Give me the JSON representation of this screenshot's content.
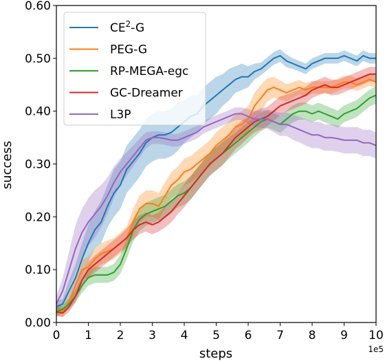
{
  "chart_data": {
    "type": "line",
    "xlabel": "steps",
    "ylabel": "success",
    "x_offset_label": "1e5",
    "xlim": [
      0,
      10
    ],
    "ylim": [
      0,
      0.6
    ],
    "xticks": [
      0,
      1,
      2,
      3,
      4,
      5,
      6,
      7,
      8,
      9,
      10
    ],
    "xtick_labels": [
      "0",
      "1",
      "2",
      "3",
      "4",
      "5",
      "6",
      "7",
      "8",
      "9",
      "10"
    ],
    "yticks": [
      0,
      0.1,
      0.2,
      0.3,
      0.4,
      0.5,
      0.6
    ],
    "ytick_labels": [
      "0.00",
      "0.10",
      "0.20",
      "0.30",
      "0.40",
      "0.50",
      "0.60"
    ],
    "grid": false,
    "legend_position": "upper-left",
    "x": [
      0,
      0.2,
      0.4,
      0.6,
      0.8,
      1.0,
      1.2,
      1.4,
      1.6,
      1.8,
      2.0,
      2.2,
      2.4,
      2.6,
      2.8,
      3.0,
      3.2,
      3.4,
      3.6,
      3.8,
      4.0,
      4.2,
      4.4,
      4.6,
      4.8,
      5.0,
      5.2,
      5.4,
      5.6,
      5.8,
      6.0,
      6.2,
      6.4,
      6.6,
      6.8,
      7.0,
      7.2,
      7.4,
      7.6,
      7.8,
      8.0,
      8.2,
      8.4,
      8.6,
      8.8,
      9.0,
      9.2,
      9.4,
      9.6,
      9.8,
      10.0
    ],
    "series": [
      {
        "name_prefix": "CE",
        "name_sup": "2",
        "name_suffix": "-G",
        "color": "#1f77b4",
        "values": [
          0.03,
          0.035,
          0.06,
          0.085,
          0.12,
          0.15,
          0.175,
          0.19,
          0.22,
          0.245,
          0.26,
          0.29,
          0.305,
          0.32,
          0.34,
          0.35,
          0.355,
          0.355,
          0.36,
          0.37,
          0.38,
          0.39,
          0.395,
          0.41,
          0.42,
          0.43,
          0.44,
          0.45,
          0.46,
          0.465,
          0.465,
          0.475,
          0.48,
          0.49,
          0.5,
          0.505,
          0.495,
          0.49,
          0.485,
          0.48,
          0.49,
          0.495,
          0.5,
          0.5,
          0.5,
          0.505,
          0.5,
          0.495,
          0.505,
          0.5,
          0.5
        ],
        "band": [
          0.01,
          0.01,
          0.02,
          0.025,
          0.03,
          0.035,
          0.035,
          0.04,
          0.04,
          0.045,
          0.045,
          0.045,
          0.045,
          0.045,
          0.045,
          0.045,
          0.045,
          0.045,
          0.045,
          0.045,
          0.04,
          0.04,
          0.035,
          0.035,
          0.035,
          0.035,
          0.03,
          0.03,
          0.025,
          0.025,
          0.02,
          0.015,
          0.012,
          0.012,
          0.012,
          0.012,
          0.012,
          0.01,
          0.01,
          0.01,
          0.01,
          0.01,
          0.01,
          0.01,
          0.01,
          0.01,
          0.01,
          0.01,
          0.01,
          0.01,
          0.01
        ]
      },
      {
        "name": "PEG-G",
        "color": "#ff7f0e",
        "values": [
          0.025,
          0.02,
          0.04,
          0.07,
          0.1,
          0.105,
          0.12,
          0.13,
          0.135,
          0.14,
          0.15,
          0.16,
          0.19,
          0.215,
          0.225,
          0.225,
          0.22,
          0.24,
          0.26,
          0.27,
          0.285,
          0.29,
          0.3,
          0.31,
          0.32,
          0.335,
          0.345,
          0.355,
          0.37,
          0.375,
          0.385,
          0.41,
          0.425,
          0.44,
          0.445,
          0.44,
          0.435,
          0.44,
          0.445,
          0.44,
          0.445,
          0.445,
          0.445,
          0.445,
          0.45,
          0.455,
          0.455,
          0.45,
          0.455,
          0.46,
          0.455
        ],
        "band": [
          0.01,
          0.01,
          0.012,
          0.015,
          0.018,
          0.02,
          0.02,
          0.02,
          0.02,
          0.02,
          0.02,
          0.022,
          0.025,
          0.025,
          0.025,
          0.025,
          0.025,
          0.025,
          0.025,
          0.025,
          0.025,
          0.025,
          0.025,
          0.025,
          0.025,
          0.025,
          0.025,
          0.025,
          0.025,
          0.025,
          0.025,
          0.025,
          0.025,
          0.022,
          0.02,
          0.018,
          0.016,
          0.015,
          0.014,
          0.013,
          0.012,
          0.012,
          0.012,
          0.012,
          0.012,
          0.012,
          0.012,
          0.012,
          0.012,
          0.012,
          0.012
        ]
      },
      {
        "name": "RP-MEGA-egc",
        "color": "#2ca02c",
        "values": [
          0.02,
          0.025,
          0.035,
          0.05,
          0.07,
          0.085,
          0.09,
          0.09,
          0.09,
          0.095,
          0.11,
          0.14,
          0.175,
          0.195,
          0.205,
          0.21,
          0.215,
          0.22,
          0.23,
          0.24,
          0.245,
          0.255,
          0.27,
          0.285,
          0.3,
          0.31,
          0.32,
          0.33,
          0.34,
          0.35,
          0.36,
          0.37,
          0.38,
          0.385,
          0.38,
          0.375,
          0.385,
          0.395,
          0.4,
          0.4,
          0.395,
          0.4,
          0.395,
          0.39,
          0.385,
          0.395,
          0.4,
          0.405,
          0.415,
          0.425,
          0.43
        ],
        "band": [
          0.008,
          0.008,
          0.01,
          0.012,
          0.014,
          0.015,
          0.015,
          0.015,
          0.015,
          0.016,
          0.018,
          0.02,
          0.022,
          0.022,
          0.022,
          0.022,
          0.022,
          0.022,
          0.022,
          0.022,
          0.022,
          0.022,
          0.022,
          0.022,
          0.022,
          0.022,
          0.022,
          0.02,
          0.02,
          0.02,
          0.02,
          0.018,
          0.018,
          0.016,
          0.016,
          0.016,
          0.016,
          0.016,
          0.016,
          0.016,
          0.016,
          0.016,
          0.016,
          0.016,
          0.016,
          0.016,
          0.016,
          0.016,
          0.016,
          0.016,
          0.016
        ]
      },
      {
        "name": "GC-Dreamer",
        "color": "#d62728",
        "values": [
          0.02,
          0.018,
          0.03,
          0.05,
          0.08,
          0.1,
          0.11,
          0.12,
          0.13,
          0.14,
          0.15,
          0.16,
          0.175,
          0.185,
          0.19,
          0.185,
          0.19,
          0.2,
          0.21,
          0.225,
          0.24,
          0.255,
          0.27,
          0.285,
          0.3,
          0.31,
          0.32,
          0.335,
          0.35,
          0.36,
          0.37,
          0.38,
          0.385,
          0.39,
          0.4,
          0.41,
          0.415,
          0.42,
          0.425,
          0.43,
          0.44,
          0.445,
          0.45,
          0.445,
          0.445,
          0.45,
          0.455,
          0.46,
          0.465,
          0.47,
          0.47
        ],
        "band": [
          0.008,
          0.008,
          0.01,
          0.012,
          0.014,
          0.015,
          0.016,
          0.016,
          0.016,
          0.016,
          0.016,
          0.018,
          0.018,
          0.018,
          0.018,
          0.018,
          0.018,
          0.02,
          0.02,
          0.02,
          0.022,
          0.022,
          0.022,
          0.022,
          0.022,
          0.022,
          0.022,
          0.022,
          0.022,
          0.022,
          0.02,
          0.02,
          0.02,
          0.018,
          0.018,
          0.018,
          0.016,
          0.016,
          0.016,
          0.016,
          0.015,
          0.015,
          0.015,
          0.015,
          0.014,
          0.014,
          0.014,
          0.014,
          0.014,
          0.014,
          0.014
        ]
      },
      {
        "name": "L3P",
        "color": "#9467bd",
        "values": [
          0.035,
          0.06,
          0.1,
          0.14,
          0.17,
          0.19,
          0.205,
          0.22,
          0.24,
          0.265,
          0.285,
          0.3,
          0.315,
          0.33,
          0.345,
          0.35,
          0.35,
          0.348,
          0.345,
          0.345,
          0.35,
          0.355,
          0.36,
          0.37,
          0.375,
          0.38,
          0.385,
          0.39,
          0.395,
          0.395,
          0.39,
          0.385,
          0.385,
          0.385,
          0.38,
          0.375,
          0.375,
          0.37,
          0.365,
          0.36,
          0.355,
          0.355,
          0.35,
          0.35,
          0.348,
          0.345,
          0.345,
          0.345,
          0.34,
          0.34,
          0.335
        ],
        "band": [
          0.015,
          0.025,
          0.035,
          0.045,
          0.045,
          0.045,
          0.045,
          0.04,
          0.035,
          0.03,
          0.025,
          0.022,
          0.02,
          0.018,
          0.015,
          0.012,
          0.012,
          0.012,
          0.012,
          0.012,
          0.012,
          0.012,
          0.012,
          0.012,
          0.012,
          0.012,
          0.012,
          0.012,
          0.012,
          0.012,
          0.014,
          0.015,
          0.016,
          0.018,
          0.02,
          0.022,
          0.022,
          0.024,
          0.024,
          0.025,
          0.025,
          0.025,
          0.025,
          0.025,
          0.025,
          0.025,
          0.025,
          0.025,
          0.025,
          0.025,
          0.025
        ]
      }
    ]
  }
}
